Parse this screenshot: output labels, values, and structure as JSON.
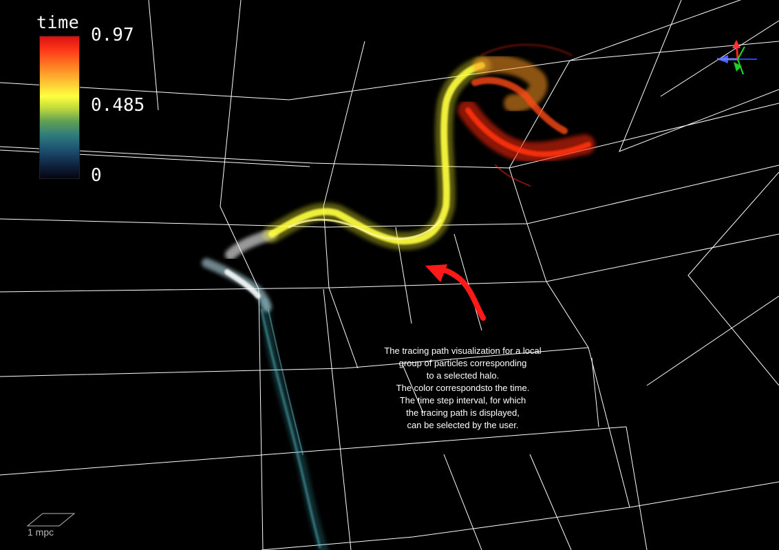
{
  "legend": {
    "title": "time",
    "max_label": "0.97",
    "mid_label": "0.485",
    "min_label": "0",
    "colors": [
      "#dd1010",
      "#ff7a22",
      "#ffff40",
      "#5f9f56",
      "#1d4f70",
      "#05060f"
    ]
  },
  "caption": {
    "text": "The tracing path visualization for a local\ngroup of particles corresponding\nto a selected halo.\nThe color correspondsto the time.\nThe time step interval, for which\nthe tracing path is displayed,\ncan be selected by the user."
  },
  "scale_bar": {
    "label": "1 mpc"
  },
  "icons": {
    "axes_gizmo": "orientation-axes-icon",
    "annotation_arrow": "curved-arrow-icon"
  },
  "colors": {
    "background": "#000000",
    "grid": "#ffffff",
    "path_early": "#8ee8f0",
    "path_mid": "#ffff30",
    "path_late": "#ff2a10",
    "annotation_arrow": "#ff1a1a"
  }
}
